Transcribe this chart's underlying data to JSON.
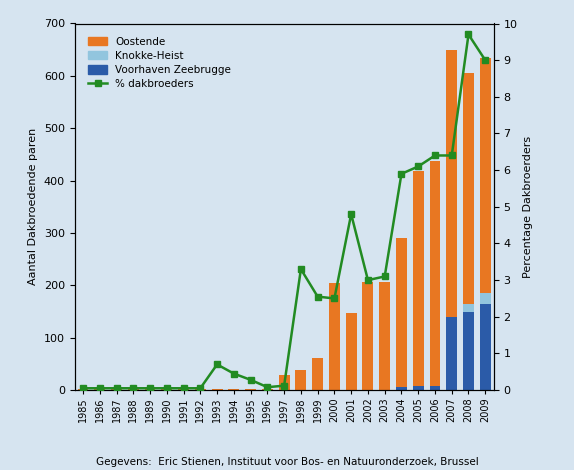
{
  "years": [
    1985,
    1986,
    1987,
    1988,
    1989,
    1990,
    1991,
    1992,
    1993,
    1994,
    1995,
    1996,
    1997,
    1998,
    1999,
    2000,
    2001,
    2002,
    2003,
    2004,
    2005,
    2006,
    2007,
    2008,
    2009
  ],
  "oostende": [
    2,
    2,
    2,
    2,
    2,
    2,
    2,
    2,
    2,
    2,
    2,
    2,
    28,
    38,
    62,
    205,
    148,
    207,
    207,
    285,
    410,
    430,
    510,
    440,
    450
  ],
  "knokke_heist": [
    0,
    0,
    0,
    0,
    0,
    0,
    0,
    0,
    0,
    0,
    0,
    0,
    0,
    0,
    0,
    0,
    0,
    0,
    0,
    0,
    0,
    0,
    0,
    15,
    20
  ],
  "voorhaven": [
    0,
    0,
    0,
    0,
    0,
    0,
    0,
    0,
    0,
    0,
    0,
    0,
    0,
    0,
    0,
    0,
    0,
    0,
    0,
    5,
    8,
    8,
    140,
    150,
    165
  ],
  "pct_dakbroeders": [
    0.05,
    0.05,
    0.05,
    0.05,
    0.05,
    0.05,
    0.05,
    0.05,
    0.7,
    0.45,
    0.28,
    0.08,
    0.12,
    3.3,
    2.55,
    2.5,
    4.8,
    3.0,
    3.1,
    5.9,
    6.1,
    6.4,
    6.4,
    9.7,
    9.0
  ],
  "ylabel_left": "Aantal Dakbroedende paren",
  "ylabel_right": "Percentage Dakbroerders",
  "ylim_left": [
    0,
    700
  ],
  "ylim_right": [
    0,
    10
  ],
  "yticks_left": [
    0,
    100,
    200,
    300,
    400,
    500,
    600,
    700
  ],
  "yticks_right": [
    0,
    1,
    2,
    3,
    4,
    5,
    6,
    7,
    8,
    9,
    10
  ],
  "color_oostende": "#E87722",
  "color_knokke": "#92C5DE",
  "color_voorhaven": "#2B5BA8",
  "color_line": "#228B22",
  "background_color": "#D6E4F0",
  "footer": "Gegevens:  Eric Stienen, Instituut voor Bos- en Natuuronderzoek, Brussel",
  "legend_labels": [
    "Oostende",
    "Knokke-Heist",
    "Voorhaven Zeebrugge",
    "% dakbroeders"
  ]
}
